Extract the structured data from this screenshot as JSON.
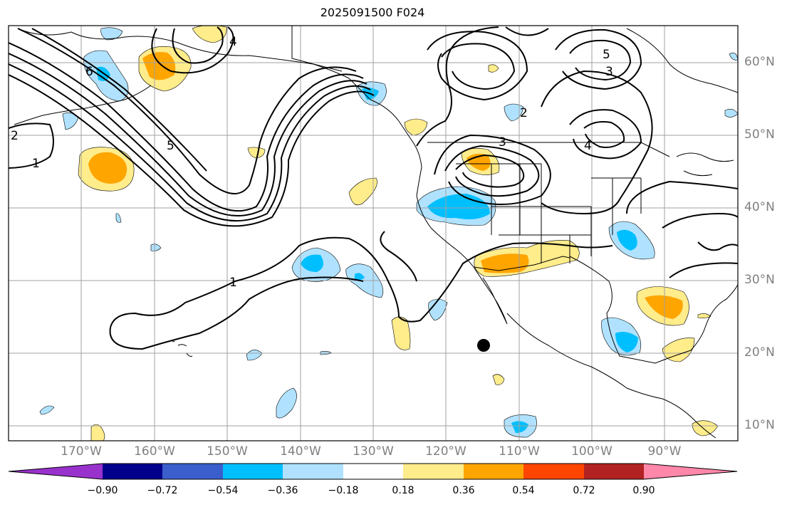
{
  "title": "2025091500 F024",
  "lat_labels": [
    "60°N",
    "50°N",
    "40°N",
    "30°N",
    "20°N",
    "10°N"
  ],
  "lon_labels": [
    "170°W",
    "160°W",
    "150°W",
    "140°W",
    "130°W",
    "120°W",
    "110°W",
    "100°W",
    "90°W"
  ],
  "contour_labels": [
    "1",
    "1",
    "2",
    "2",
    "3",
    "3",
    "4",
    "4",
    "5",
    "5",
    "6"
  ],
  "colorbar": {
    "ticks": [
      "−0.90",
      "−0.72",
      "−0.54",
      "−0.36",
      "−0.18",
      "0.18",
      "0.36",
      "0.54",
      "0.72",
      "0.90"
    ],
    "colors": [
      "#9932cc",
      "#00008b",
      "#3a5fcd",
      "#00bfff",
      "#b0e2ff",
      "#ffffff",
      "#ffec8b",
      "#ffa500",
      "#ff4500",
      "#b22222",
      "#ff88aa"
    ]
  },
  "colors": {
    "positive_light": "#ffec8b",
    "positive_mid": "#ffa500",
    "negative_light": "#b0e2ff",
    "negative_mid": "#00bfff",
    "contour": "#000000",
    "grid": "#a0a0a0"
  },
  "marker": {
    "label": "storm-center",
    "lon": -114.8,
    "lat": 21.0
  }
}
